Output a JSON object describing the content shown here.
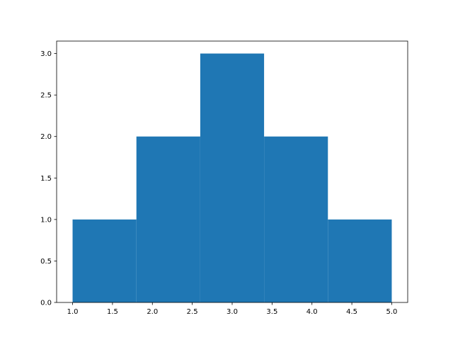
{
  "chart_data": {
    "type": "bar",
    "subtype": "histogram",
    "bin_edges": [
      1.0,
      1.8,
      2.6,
      3.4,
      4.2,
      5.0
    ],
    "values": [
      1,
      2,
      3,
      2,
      1
    ],
    "title": "",
    "xlabel": "",
    "ylabel": "",
    "xlim": [
      0.8,
      5.2
    ],
    "ylim": [
      0,
      3.15
    ],
    "xticks": [
      1.0,
      1.5,
      2.0,
      2.5,
      3.0,
      3.5,
      4.0,
      4.5,
      5.0
    ],
    "xtick_labels": [
      "1.0",
      "1.5",
      "2.0",
      "2.5",
      "3.0",
      "3.5",
      "4.0",
      "4.5",
      "5.0"
    ],
    "yticks": [
      0,
      0.5,
      1.0,
      1.5,
      2.0,
      2.5,
      3.0
    ],
    "ytick_labels": [
      "0.0",
      "0.5",
      "1.0",
      "1.5",
      "2.0",
      "2.5",
      "3.0"
    ],
    "grid": false,
    "bar_color": "#1f77b4"
  }
}
